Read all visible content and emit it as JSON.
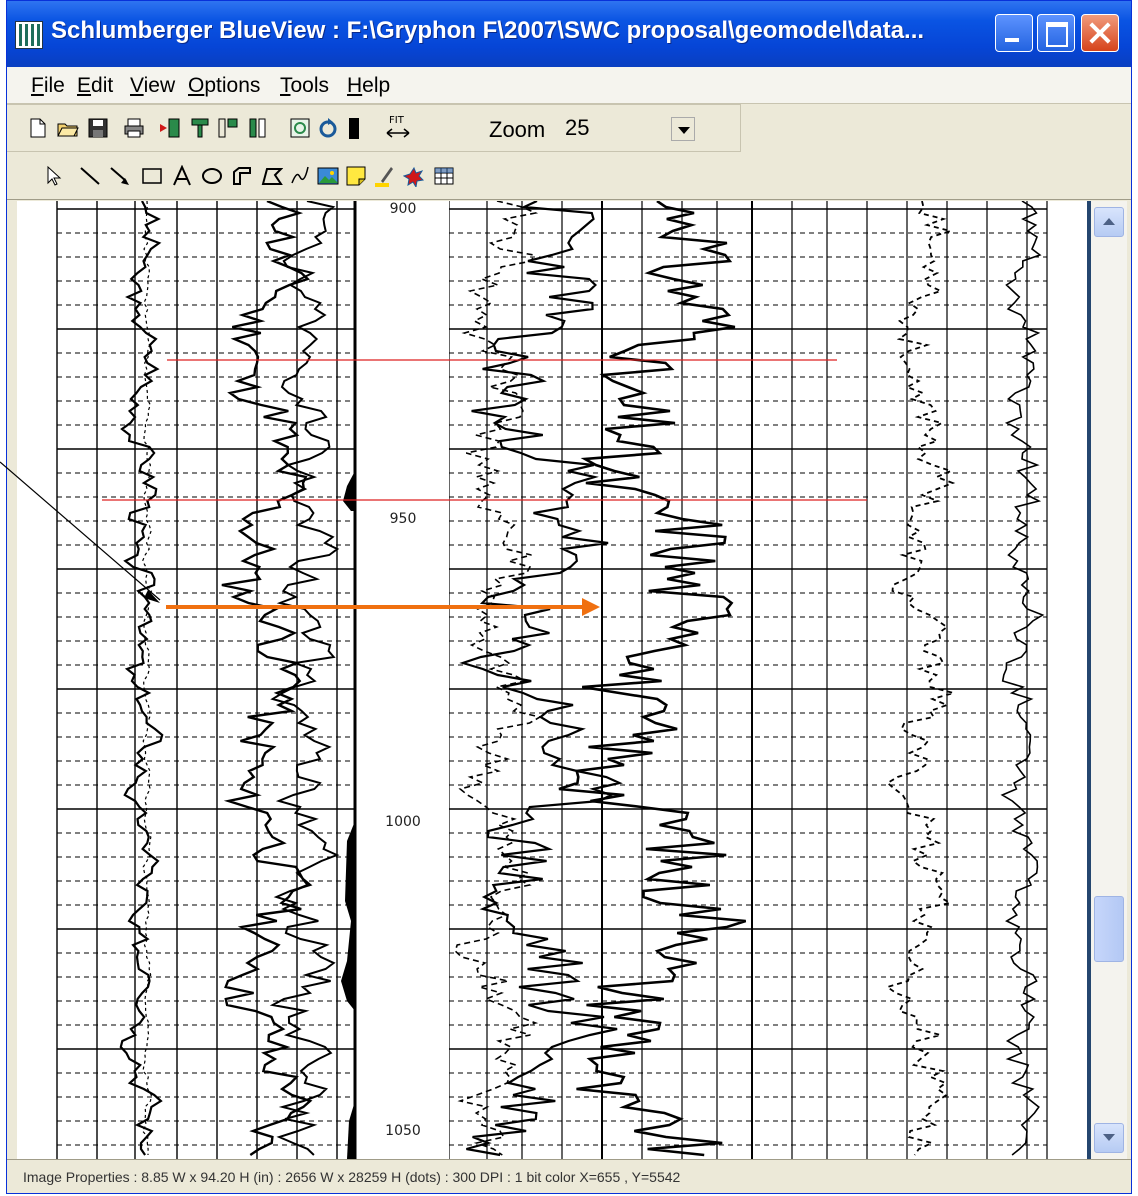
{
  "window": {
    "title": "Schlumberger BlueView : F:\\Gryphon F\\2007\\SWC proposal\\geomodel\\data..."
  },
  "menu": [
    "File",
    "Edit",
    "View",
    "Options",
    "Tools",
    "Help"
  ],
  "toolbar": {
    "zoom_label": "Zoom",
    "zoom_value": "25",
    "fit_label": "FIT"
  },
  "log": {
    "depth_labels": [
      "900",
      "950",
      "1000",
      "1050"
    ]
  },
  "status": {
    "text": "Image Properties :  8.85 W x 94.20 H (in) :  2656 W x 28259 H (dots)  : 300 DPI : 1 bit color    X=655 , Y=5542"
  },
  "colors": {
    "marker_line": "#dd2020",
    "annotation_arrow": "#f07010",
    "titlebar": "#0a54e3"
  }
}
